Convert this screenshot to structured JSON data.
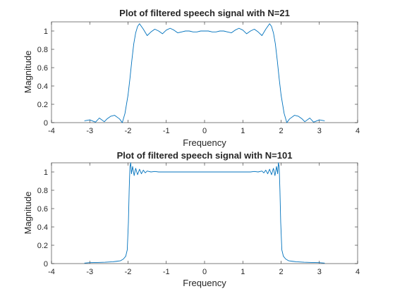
{
  "chart_data": [
    {
      "type": "line",
      "title": "Plot of filtered speech signal with N=21",
      "xlabel": "Frequency",
      "ylabel": "Magnitude",
      "xlim": [
        -4,
        4
      ],
      "ylim": [
        0,
        1.1
      ],
      "xticks": [
        "-4",
        "-3",
        "-2",
        "-1",
        "0",
        "1",
        "2",
        "3",
        "4"
      ],
      "yticks": [
        "0",
        "0.2",
        "0.4",
        "0.6",
        "0.8",
        "1"
      ],
      "grid": false,
      "color": "#0072bd",
      "series": [
        {
          "x": [
            -3.14,
            -3.0,
            -2.85,
            -2.75,
            -2.62,
            -2.55,
            -2.45,
            -2.35,
            -2.22,
            -2.15,
            -2.08,
            -2.0,
            -1.95,
            -1.9,
            -1.85,
            -1.8,
            -1.75,
            -1.7,
            -1.6,
            -1.5,
            -1.4,
            -1.3,
            -1.2,
            -1.1,
            -1.0,
            -0.9,
            -0.8,
            -0.7,
            -0.6,
            -0.5,
            -0.4,
            -0.3,
            -0.2,
            -0.1,
            0.0,
            0.1,
            0.2,
            0.3,
            0.4,
            0.5,
            0.6,
            0.7,
            0.8,
            0.9,
            1.0,
            1.1,
            1.2,
            1.3,
            1.4,
            1.5,
            1.6,
            1.7,
            1.75,
            1.8,
            1.85,
            1.9,
            1.95,
            2.0,
            2.08,
            2.15,
            2.22,
            2.35,
            2.45,
            2.55,
            2.62,
            2.75,
            2.85,
            3.0,
            3.14
          ],
          "y": [
            0.02,
            0.03,
            0.005,
            0.05,
            0.01,
            0.04,
            0.07,
            0.08,
            0.04,
            0.0,
            0.1,
            0.3,
            0.48,
            0.68,
            0.86,
            0.98,
            1.05,
            1.08,
            1.02,
            0.95,
            0.99,
            1.02,
            1.0,
            0.97,
            1.01,
            1.03,
            1.01,
            0.98,
            0.99,
            1.0,
            1.0,
            0.99,
            0.99,
            1.0,
            1.0,
            1.0,
            0.99,
            0.99,
            1.0,
            1.0,
            0.99,
            0.98,
            1.01,
            1.03,
            1.01,
            0.97,
            1.0,
            1.02,
            0.99,
            0.95,
            1.02,
            1.08,
            1.05,
            0.98,
            0.86,
            0.68,
            0.48,
            0.3,
            0.1,
            0.0,
            0.04,
            0.08,
            0.07,
            0.04,
            0.01,
            0.05,
            0.005,
            0.03,
            0.02
          ]
        }
      ]
    },
    {
      "type": "line",
      "title": "Plot of filtered speech signal with N=101",
      "xlabel": "Frequency",
      "ylabel": "Magnitude",
      "xlim": [
        -4,
        4
      ],
      "ylim": [
        0,
        1.1
      ],
      "xticks": [
        "-4",
        "-3",
        "-2",
        "-1",
        "0",
        "1",
        "2",
        "3",
        "4"
      ],
      "yticks": [
        "0",
        "0.2",
        "0.4",
        "0.6",
        "0.8",
        "1"
      ],
      "grid": false,
      "color": "#0072bd",
      "series": [
        {
          "x": [
            -3.14,
            -3.0,
            -2.8,
            -2.6,
            -2.4,
            -2.3,
            -2.2,
            -2.12,
            -2.06,
            -2.02,
            -1.99,
            -1.97,
            -1.95,
            -1.93,
            -1.91,
            -1.88,
            -1.84,
            -1.8,
            -1.75,
            -1.7,
            -1.65,
            -1.6,
            -1.55,
            -1.5,
            -1.4,
            -1.3,
            -1.2,
            -1.0,
            -0.5,
            0.0,
            0.5,
            1.0,
            1.2,
            1.3,
            1.4,
            1.5,
            1.55,
            1.6,
            1.65,
            1.7,
            1.75,
            1.8,
            1.84,
            1.88,
            1.91,
            1.93,
            1.95,
            1.97,
            1.99,
            2.02,
            2.06,
            2.12,
            2.2,
            2.3,
            2.4,
            2.6,
            2.8,
            3.0,
            3.14
          ],
          "y": [
            0.005,
            0.01,
            0.012,
            0.015,
            0.02,
            0.025,
            0.03,
            0.05,
            0.08,
            0.15,
            0.45,
            0.8,
            1.06,
            1.1,
            0.98,
            1.06,
            0.96,
            1.04,
            0.97,
            1.03,
            0.98,
            1.02,
            0.99,
            1.01,
            1.0,
            1.005,
            1.0,
            1.0,
            1.0,
            1.0,
            1.0,
            1.0,
            1.0,
            1.005,
            1.0,
            1.01,
            0.99,
            1.02,
            0.98,
            1.03,
            0.97,
            1.04,
            0.96,
            1.06,
            0.98,
            1.1,
            1.06,
            0.8,
            0.45,
            0.15,
            0.08,
            0.05,
            0.03,
            0.025,
            0.02,
            0.015,
            0.012,
            0.01,
            0.005
          ]
        }
      ]
    }
  ]
}
